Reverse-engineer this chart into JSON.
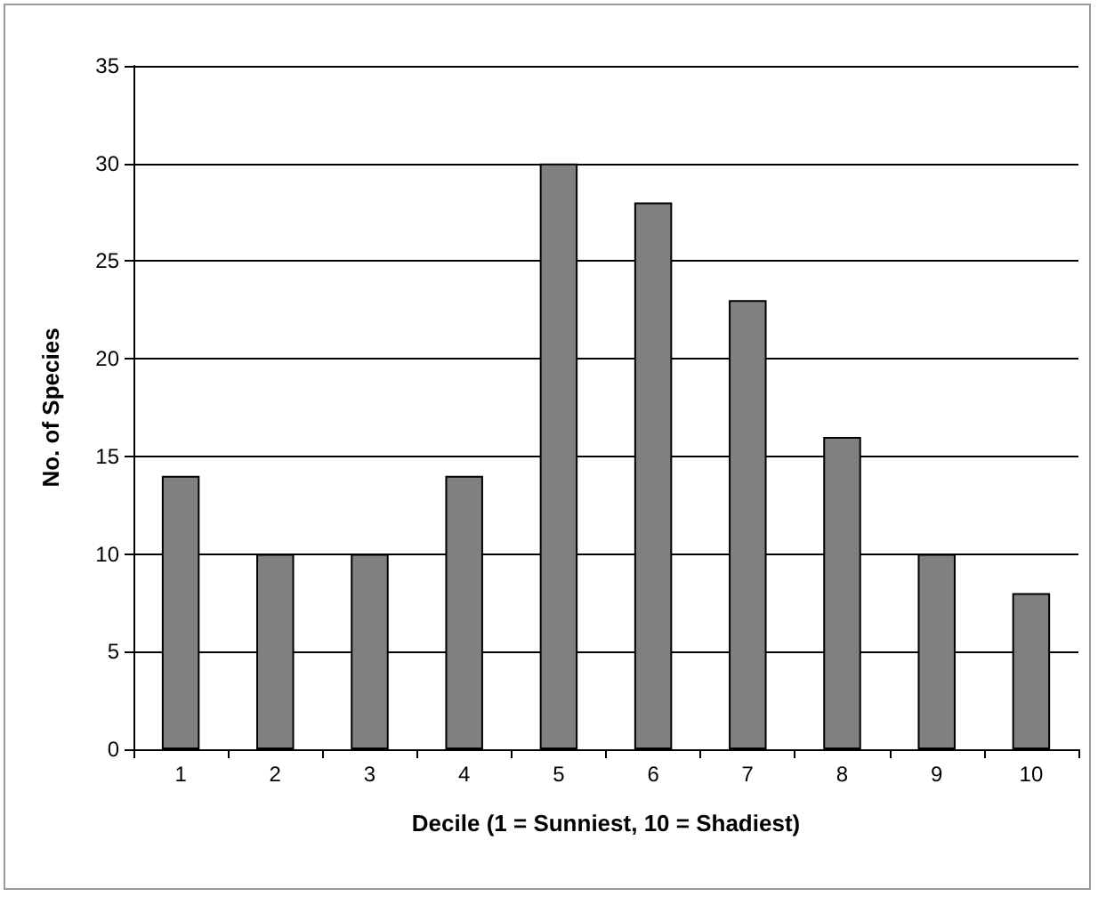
{
  "chart_data": {
    "type": "bar",
    "xlabel": "Decile (1 = Sunniest, 10 = Shadiest)",
    "ylabel": "No. of Species",
    "categories": [
      "1",
      "2",
      "3",
      "4",
      "5",
      "6",
      "7",
      "8",
      "9",
      "10"
    ],
    "values": [
      14,
      10,
      10,
      14,
      30,
      28,
      23,
      16,
      10,
      8
    ],
    "color": "#808080",
    "ylim": [
      0,
      35
    ],
    "yticks": [
      0,
      5,
      10,
      15,
      20,
      25,
      30,
      35
    ],
    "grid": "y"
  }
}
